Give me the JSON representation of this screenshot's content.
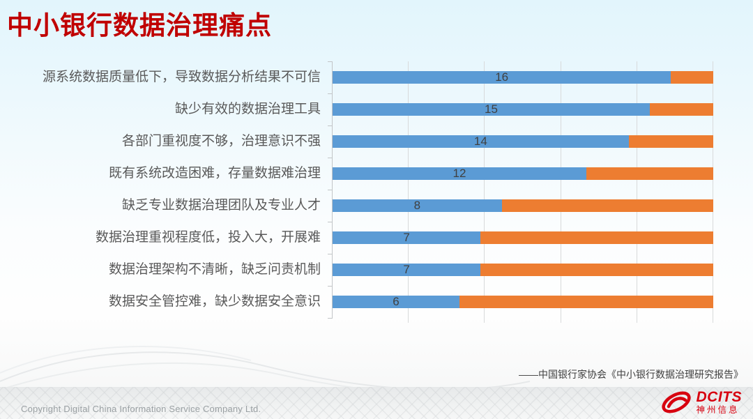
{
  "slide": {
    "title": "中小银行数据治理痛点",
    "source_citation": "——中国银行家协会《中小银行数据治理研究报告》"
  },
  "chart_data": {
    "type": "bar",
    "orientation": "horizontal",
    "stacked": true,
    "title": "",
    "xlabel": "",
    "ylabel": "",
    "categories": [
      "源系统数据质量低下，导致数据分析结果不可信",
      "缺少有效的数据治理工具",
      "各部门重视度不够，治理意识不强",
      "既有系统改造困难，存量数据难治理",
      "缺乏专业数据治理团队及专业人才",
      "数据治理重视程度低，投入大，开展难",
      "数据治理架构不清晰，缺乏问责机制",
      "数据安全管控难，缺少数据安全意识"
    ],
    "series": [
      {
        "name": "blue",
        "color": "#5b9bd5",
        "values": [
          16,
          15,
          14,
          12,
          8,
          7,
          7,
          6
        ]
      },
      {
        "name": "orange",
        "color": "#ed7d31",
        "values": [
          2,
          3,
          4,
          6,
          10,
          11,
          11,
          12
        ]
      }
    ],
    "data_labels": [
      16,
      15,
      14,
      12,
      8,
      7,
      7,
      6
    ],
    "stack_total": 18,
    "xlim": [
      0,
      18
    ],
    "gridlines": {
      "vertical": true,
      "intervals": 5
    },
    "legend_position": "none",
    "axis_value_labels": "none"
  },
  "footer": {
    "copyright": "Copyright  Digital China Information Service Company Ltd.",
    "logo_word": "DCITS",
    "logo_subtext": "神州信息"
  },
  "colors": {
    "title": "#c00000",
    "category_text": "#595959",
    "value_text": "#404040",
    "gridline": "#d8dadb",
    "axis": "#c2c5c7",
    "logo_red": "#d7000f"
  }
}
